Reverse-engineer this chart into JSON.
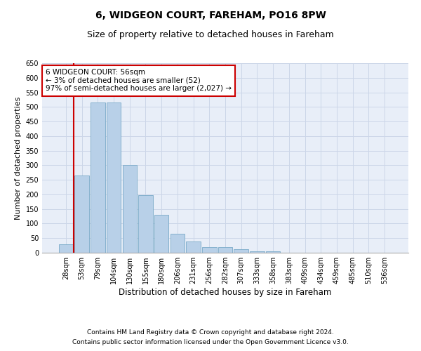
{
  "title": "6, WIDGEON COURT, FAREHAM, PO16 8PW",
  "subtitle": "Size of property relative to detached houses in Fareham",
  "xlabel": "Distribution of detached houses by size in Fareham",
  "ylabel": "Number of detached properties",
  "categories": [
    "28sqm",
    "53sqm",
    "79sqm",
    "104sqm",
    "130sqm",
    "155sqm",
    "180sqm",
    "206sqm",
    "231sqm",
    "256sqm",
    "282sqm",
    "307sqm",
    "333sqm",
    "358sqm",
    "383sqm",
    "409sqm",
    "434sqm",
    "459sqm",
    "485sqm",
    "510sqm",
    "536sqm"
  ],
  "values": [
    30,
    265,
    515,
    515,
    300,
    197,
    130,
    65,
    38,
    20,
    20,
    13,
    6,
    4,
    1,
    0,
    1,
    0,
    0,
    1,
    1
  ],
  "bar_color": "#b8d0e8",
  "bar_edge_color": "#7aaac8",
  "ylim": [
    0,
    650
  ],
  "yticks": [
    0,
    50,
    100,
    150,
    200,
    250,
    300,
    350,
    400,
    450,
    500,
    550,
    600,
    650
  ],
  "annotation_text": "6 WIDGEON COURT: 56sqm\n← 3% of detached houses are smaller (52)\n97% of semi-detached houses are larger (2,027) →",
  "annotation_box_color": "#ffffff",
  "annotation_box_edge": "#cc0000",
  "red_line_x": 0.5,
  "grid_color": "#ccd6e8",
  "bg_color": "#e8eef8",
  "footnote1": "Contains HM Land Registry data © Crown copyright and database right 2024.",
  "footnote2": "Contains public sector information licensed under the Open Government Licence v3.0.",
  "title_fontsize": 10,
  "subtitle_fontsize": 9,
  "xlabel_fontsize": 8.5,
  "ylabel_fontsize": 8,
  "tick_fontsize": 7,
  "annotation_fontsize": 7.5,
  "footnote_fontsize": 6.5
}
